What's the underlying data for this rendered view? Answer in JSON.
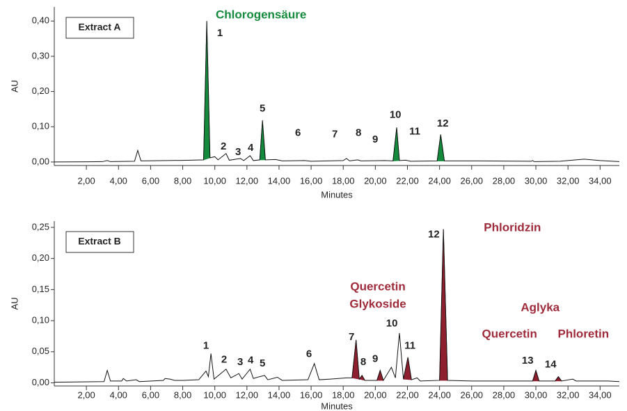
{
  "chart_data": [
    {
      "type": "line",
      "panel_label": "Extract A",
      "xlabel": "Minutes",
      "ylabel": "AU",
      "xlim": [
        0,
        35.2
      ],
      "ylim": [
        -0.01,
        0.44
      ],
      "xticks": [
        {
          "value": 2,
          "label": "2,00"
        },
        {
          "value": 4,
          "label": "4,00"
        },
        {
          "value": 6,
          "label": "6,00"
        },
        {
          "value": 8,
          "label": "8,00"
        },
        {
          "value": 10,
          "label": "10,00"
        },
        {
          "value": 12,
          "label": "12,00"
        },
        {
          "value": 14,
          "label": "14,00"
        },
        {
          "value": 16,
          "label": "16,00"
        },
        {
          "value": 18,
          "label": "18,00"
        },
        {
          "value": 20,
          "label": "20,00"
        },
        {
          "value": 22,
          "label": "22,00"
        },
        {
          "value": 24,
          "label": "24,00"
        },
        {
          "value": 26,
          "label": "26,00"
        },
        {
          "value": 28,
          "label": "28,00"
        },
        {
          "value": 30,
          "label": "30,00"
        },
        {
          "value": 32,
          "label": "32,00"
        },
        {
          "value": 34,
          "label": "34,00"
        }
      ],
      "yticks": [
        {
          "value": 0,
          "label": "0,00"
        },
        {
          "value": 0.1,
          "label": "0,10"
        },
        {
          "value": 0.2,
          "label": "0,20"
        },
        {
          "value": 0.3,
          "label": "0,30"
        },
        {
          "value": 0.4,
          "label": "0,40"
        }
      ],
      "color": "#111111",
      "x": [
        0,
        3.0,
        3.3,
        3.5,
        5.0,
        5.2,
        5.4,
        7.0,
        8.5,
        9.3,
        9.5,
        9.7,
        10.0,
        10.2,
        10.7,
        10.9,
        11.6,
        11.8,
        12.2,
        12.4,
        12.8,
        12.97,
        13.15,
        13.8,
        14.2,
        15.6,
        16.0,
        18.0,
        18.2,
        18.4,
        18.9,
        19.1,
        20.6,
        21.1,
        21.33,
        21.5,
        21.9,
        22.2,
        23.85,
        24.07,
        24.3,
        26.4,
        29.7,
        29.8,
        29.9,
        31.5,
        33.0,
        34.0,
        35.2
      ],
      "values": [
        0.0,
        0.001,
        0.004,
        0.001,
        0.002,
        0.033,
        0.003,
        0.004,
        0.005,
        0.006,
        0.4,
        0.012,
        0.015,
        0.006,
        0.024,
        0.005,
        0.01,
        0.004,
        0.018,
        0.004,
        0.006,
        0.118,
        0.006,
        0.007,
        0.003,
        0.004,
        0.002,
        0.004,
        0.01,
        0.003,
        0.006,
        0.003,
        0.004,
        0.003,
        0.098,
        0.004,
        0.005,
        0.002,
        0.003,
        0.078,
        0.003,
        0.003,
        0.002,
        0.004,
        0.001,
        0.002,
        0.008,
        0.004,
        0.001
      ],
      "highlight": {
        "color": "#138a3c",
        "ranges": [
          [
            9.3,
            9.7
          ],
          [
            12.8,
            13.15
          ],
          [
            21.1,
            21.5
          ],
          [
            23.85,
            24.3
          ]
        ]
      },
      "peak_labels": [
        {
          "text": "1",
          "x": 10.32,
          "y": 0.365
        },
        {
          "text": "2",
          "x": 10.54,
          "y": 0.043
        },
        {
          "text": "3",
          "x": 11.45,
          "y": 0.027
        },
        {
          "text": "4",
          "x": 12.23,
          "y": 0.039
        },
        {
          "text": "5",
          "x": 12.97,
          "y": 0.151
        },
        {
          "text": "6",
          "x": 15.18,
          "y": 0.082
        },
        {
          "text": "7",
          "x": 17.48,
          "y": 0.078
        },
        {
          "text": "8",
          "x": 18.95,
          "y": 0.082
        },
        {
          "text": "9",
          "x": 19.99,
          "y": 0.063
        },
        {
          "text": "10",
          "x": 21.25,
          "y": 0.133
        },
        {
          "text": "11",
          "x": 22.46,
          "y": 0.086
        },
        {
          "text": "12",
          "x": 24.2,
          "y": 0.108
        }
      ],
      "annotations": [
        {
          "text": "Chlorogensäure",
          "x": 12.88,
          "y": 0.416,
          "color": "#138a3c"
        }
      ]
    },
    {
      "type": "line",
      "panel_label": "Extract B",
      "xlabel": "Minutes",
      "ylabel": "AU",
      "xlim": [
        0,
        35.2
      ],
      "ylim": [
        -0.005,
        0.26
      ],
      "xticks": [
        {
          "value": 2,
          "label": "2,00"
        },
        {
          "value": 4,
          "label": "4,00"
        },
        {
          "value": 6,
          "label": "6,00"
        },
        {
          "value": 8,
          "label": "8,00"
        },
        {
          "value": 10,
          "label": "10,00"
        },
        {
          "value": 12,
          "label": "12,00"
        },
        {
          "value": 14,
          "label": "14,00"
        },
        {
          "value": 16,
          "label": "16,00"
        },
        {
          "value": 18,
          "label": "18,00"
        },
        {
          "value": 20,
          "label": "20,00"
        },
        {
          "value": 22,
          "label": "22,00"
        },
        {
          "value": 24,
          "label": "24,00"
        },
        {
          "value": 26,
          "label": "26,00"
        },
        {
          "value": 28,
          "label": "28,00"
        },
        {
          "value": 30,
          "label": "30,00"
        },
        {
          "value": 32,
          "label": "32,00"
        },
        {
          "value": 34,
          "label": "34,00"
        }
      ],
      "yticks": [
        {
          "value": 0,
          "label": "0,00"
        },
        {
          "value": 0.05,
          "label": "0,05"
        },
        {
          "value": 0.1,
          "label": "0,10"
        },
        {
          "value": 0.15,
          "label": "0,15"
        },
        {
          "value": 0.2,
          "label": "0,20"
        },
        {
          "value": 0.25,
          "label": "0,25"
        }
      ],
      "color": "#111111",
      "x": [
        0,
        3.1,
        3.3,
        3.5,
        4.2,
        4.3,
        4.5,
        5.1,
        5.3,
        6.8,
        6.9,
        7.2,
        7.5,
        8.0,
        9.0,
        9.45,
        9.6,
        9.76,
        9.95,
        10.7,
        11.0,
        11.5,
        11.7,
        12.2,
        12.4,
        12.8,
        13.1,
        13.3,
        13.9,
        14.2,
        15.8,
        16.2,
        16.5,
        17.2,
        18.2,
        18.55,
        18.8,
        19.0,
        19.17,
        19.35,
        20.1,
        20.3,
        20.5,
        21.0,
        21.25,
        21.5,
        21.75,
        22.03,
        22.25,
        22.6,
        22.8,
        24.0,
        24.24,
        24.5,
        26.0,
        29.8,
        30.0,
        30.2,
        31.2,
        31.4,
        31.6,
        32.3,
        32.5,
        34.5,
        35.2
      ],
      "values": [
        0.001,
        0.002,
        0.02,
        0.003,
        0.003,
        0.007,
        0.003,
        0.005,
        0.002,
        0.004,
        0.007,
        0.006,
        0.004,
        0.004,
        0.005,
        0.019,
        0.01,
        0.047,
        0.006,
        0.022,
        0.008,
        0.015,
        0.006,
        0.022,
        0.007,
        0.01,
        0.012,
        0.005,
        0.009,
        0.004,
        0.005,
        0.031,
        0.005,
        0.006,
        0.008,
        0.008,
        0.069,
        0.006,
        0.012,
        0.004,
        0.004,
        0.02,
        0.004,
        0.025,
        0.008,
        0.08,
        0.006,
        0.041,
        0.005,
        0.008,
        0.003,
        0.004,
        0.247,
        0.004,
        0.003,
        0.003,
        0.02,
        0.003,
        0.003,
        0.01,
        0.003,
        0.006,
        0.003,
        0.003,
        0.002
      ],
      "highlight": {
        "color": "#8e1f2e",
        "ranges": [
          [
            18.55,
            19.0
          ],
          [
            19.0,
            19.35
          ],
          [
            20.1,
            20.5
          ],
          [
            21.75,
            22.25
          ],
          [
            24.0,
            24.5
          ],
          [
            29.8,
            30.2
          ],
          [
            31.2,
            31.6
          ]
        ]
      },
      "peak_labels": [
        {
          "text": "1",
          "x": 9.45,
          "y": 0.059
        },
        {
          "text": "2",
          "x": 10.58,
          "y": 0.037
        },
        {
          "text": "3",
          "x": 11.58,
          "y": 0.033
        },
        {
          "text": "4",
          "x": 12.23,
          "y": 0.036
        },
        {
          "text": "5",
          "x": 12.97,
          "y": 0.031
        },
        {
          "text": "6",
          "x": 15.87,
          "y": 0.046
        },
        {
          "text": "7",
          "x": 18.52,
          "y": 0.073
        },
        {
          "text": "8",
          "x": 19.25,
          "y": 0.033
        },
        {
          "text": "9",
          "x": 19.99,
          "y": 0.038
        },
        {
          "text": "10",
          "x": 21.03,
          "y": 0.095
        },
        {
          "text": "11",
          "x": 22.16,
          "y": 0.059
        },
        {
          "text": "12",
          "x": 23.64,
          "y": 0.238
        },
        {
          "text": "13",
          "x": 29.49,
          "y": 0.035
        },
        {
          "text": "14",
          "x": 30.92,
          "y": 0.029
        }
      ],
      "annotations": [
        {
          "text": "Phloridzin",
          "x": 28.54,
          "y": 0.249,
          "color": "#9e2a3a"
        },
        {
          "text": "Quercetin",
          "x": 20.16,
          "y": 0.154,
          "color": "#9e2a3a"
        },
        {
          "text": "Glykoside",
          "x": 20.16,
          "y": 0.126,
          "color": "#9e2a3a"
        },
        {
          "text": "Aglyka",
          "x": 30.27,
          "y": 0.12,
          "color": "#9e2a3a"
        },
        {
          "text": "Quercetin",
          "x": 28.36,
          "y": 0.078,
          "color": "#9e2a3a"
        },
        {
          "text": "Phloretin",
          "x": 32.96,
          "y": 0.078,
          "color": "#9e2a3a"
        }
      ]
    }
  ]
}
